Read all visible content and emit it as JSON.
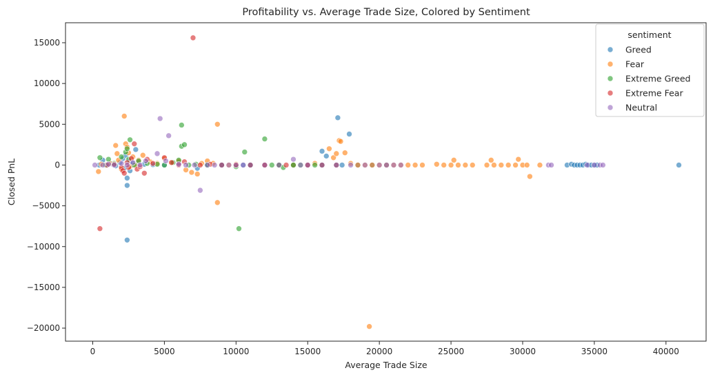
{
  "chart_data": {
    "type": "scatter",
    "title": "Profitability vs. Average Trade Size, Colored by Sentiment",
    "xlabel": "Average Trade Size",
    "ylabel": "Closed PnL",
    "xlim": [
      -1900,
      42800
    ],
    "ylim": [
      -21600,
      17450
    ],
    "xticks": [
      0,
      5000,
      10000,
      15000,
      20000,
      25000,
      30000,
      35000,
      40000
    ],
    "yticks": [
      -20000,
      -15000,
      -10000,
      -5000,
      0,
      5000,
      10000,
      15000
    ],
    "grid": false,
    "legend": {
      "title": "sentiment",
      "placement": "top-right"
    },
    "series": [
      {
        "name": "Greed",
        "color": "#1f77b4",
        "points": [
          [
            450,
            0
          ],
          [
            700,
            600
          ],
          [
            1000,
            0
          ],
          [
            1300,
            150
          ],
          [
            1600,
            -100
          ],
          [
            1900,
            300
          ],
          [
            2100,
            800
          ],
          [
            2200,
            -400
          ],
          [
            2300,
            1200
          ],
          [
            2400,
            -1600
          ],
          [
            2400,
            -2500
          ],
          [
            2400,
            -9200
          ],
          [
            2500,
            500
          ],
          [
            2600,
            -700
          ],
          [
            2700,
            0
          ],
          [
            2800,
            200
          ],
          [
            3000,
            1900
          ],
          [
            3200,
            300
          ],
          [
            3600,
            100
          ],
          [
            4200,
            50
          ],
          [
            5000,
            0
          ],
          [
            6000,
            300
          ],
          [
            7300,
            -400
          ],
          [
            8000,
            100
          ],
          [
            9000,
            0
          ],
          [
            10500,
            0
          ],
          [
            11000,
            0
          ],
          [
            12000,
            0
          ],
          [
            13000,
            0
          ],
          [
            14000,
            0
          ],
          [
            15000,
            0
          ],
          [
            16000,
            1700
          ],
          [
            16300,
            1100
          ],
          [
            17100,
            5800
          ],
          [
            17400,
            0
          ],
          [
            17900,
            3800
          ],
          [
            18500,
            0
          ],
          [
            19500,
            0
          ],
          [
            20500,
            0
          ],
          [
            33100,
            0
          ],
          [
            33400,
            100
          ],
          [
            33600,
            0
          ],
          [
            33800,
            0
          ],
          [
            34000,
            0
          ],
          [
            34200,
            0
          ],
          [
            34400,
            100
          ],
          [
            34600,
            0
          ],
          [
            34800,
            0
          ],
          [
            35000,
            0
          ],
          [
            35100,
            0
          ],
          [
            35200,
            0
          ],
          [
            40900,
            0
          ]
        ]
      },
      {
        "name": "Fear",
        "color": "#ff7f0e",
        "points": [
          [
            400,
            -800
          ],
          [
            600,
            100
          ],
          [
            1200,
            200
          ],
          [
            1600,
            2400
          ],
          [
            1700,
            1400
          ],
          [
            1800,
            600
          ],
          [
            2000,
            -500
          ],
          [
            2200,
            6000
          ],
          [
            2300,
            2600
          ],
          [
            2400,
            2200
          ],
          [
            2500,
            1500
          ],
          [
            2600,
            -200
          ],
          [
            2800,
            1000
          ],
          [
            3000,
            0
          ],
          [
            3200,
            600
          ],
          [
            3500,
            1200
          ],
          [
            4000,
            400
          ],
          [
            4500,
            200
          ],
          [
            5000,
            800
          ],
          [
            5500,
            300
          ],
          [
            6000,
            500
          ],
          [
            6500,
            -600
          ],
          [
            6900,
            -900
          ],
          [
            7300,
            -1100
          ],
          [
            7600,
            200
          ],
          [
            8000,
            500
          ],
          [
            8400,
            200
          ],
          [
            8700,
            5000
          ],
          [
            8700,
            -4600
          ],
          [
            9000,
            0
          ],
          [
            9500,
            0
          ],
          [
            10000,
            100
          ],
          [
            11000,
            0
          ],
          [
            12000,
            0
          ],
          [
            13000,
            0
          ],
          [
            14000,
            0
          ],
          [
            15000,
            0
          ],
          [
            15500,
            200
          ],
          [
            16000,
            0
          ],
          [
            16500,
            2000
          ],
          [
            16800,
            900
          ],
          [
            17000,
            1400
          ],
          [
            17200,
            3000
          ],
          [
            17300,
            2900
          ],
          [
            17600,
            1500
          ],
          [
            18000,
            200
          ],
          [
            18500,
            0
          ],
          [
            19000,
            0
          ],
          [
            19300,
            -19800
          ],
          [
            19500,
            0
          ],
          [
            20000,
            0
          ],
          [
            20500,
            0
          ],
          [
            21000,
            0
          ],
          [
            21500,
            0
          ],
          [
            22000,
            0
          ],
          [
            22500,
            0
          ],
          [
            23000,
            0
          ],
          [
            24000,
            100
          ],
          [
            24500,
            0
          ],
          [
            25000,
            0
          ],
          [
            25200,
            600
          ],
          [
            25500,
            0
          ],
          [
            26000,
            0
          ],
          [
            26500,
            0
          ],
          [
            27500,
            0
          ],
          [
            27800,
            600
          ],
          [
            28000,
            0
          ],
          [
            28500,
            0
          ],
          [
            29000,
            0
          ],
          [
            29500,
            0
          ],
          [
            29700,
            700
          ],
          [
            30000,
            0
          ],
          [
            30300,
            0
          ],
          [
            30500,
            -1400
          ],
          [
            31200,
            0
          ]
        ]
      },
      {
        "name": "Extreme Greed",
        "color": "#2ca02c",
        "points": [
          [
            500,
            900
          ],
          [
            900,
            0
          ],
          [
            1100,
            700
          ],
          [
            1500,
            200
          ],
          [
            2000,
            1000
          ],
          [
            2300,
            1600
          ],
          [
            2400,
            2000
          ],
          [
            2500,
            700
          ],
          [
            2600,
            3100
          ],
          [
            2900,
            0
          ],
          [
            3200,
            500
          ],
          [
            3800,
            200
          ],
          [
            4500,
            100
          ],
          [
            5000,
            0
          ],
          [
            5600,
            300
          ],
          [
            6000,
            600
          ],
          [
            6200,
            2300
          ],
          [
            6200,
            4900
          ],
          [
            6400,
            2500
          ],
          [
            6700,
            0
          ],
          [
            7200,
            100
          ],
          [
            8000,
            0
          ],
          [
            9000,
            0
          ],
          [
            10000,
            -200
          ],
          [
            10200,
            -7800
          ],
          [
            10600,
            1600
          ],
          [
            11000,
            0
          ],
          [
            12000,
            3200
          ],
          [
            12500,
            0
          ],
          [
            13000,
            0
          ],
          [
            13300,
            -300
          ],
          [
            14000,
            0
          ],
          [
            14500,
            0
          ],
          [
            15500,
            0
          ],
          [
            16000,
            0
          ],
          [
            17000,
            0
          ]
        ]
      },
      {
        "name": "Extreme Fear",
        "color": "#d62728",
        "points": [
          [
            500,
            -7800
          ],
          [
            1000,
            0
          ],
          [
            1500,
            100
          ],
          [
            2000,
            -300
          ],
          [
            2100,
            -700
          ],
          [
            2200,
            -1000
          ],
          [
            2400,
            300
          ],
          [
            2500,
            -300
          ],
          [
            2700,
            800
          ],
          [
            2900,
            2600
          ],
          [
            3100,
            -500
          ],
          [
            3300,
            -200
          ],
          [
            3600,
            -1000
          ],
          [
            3800,
            700
          ],
          [
            4200,
            200
          ],
          [
            5000,
            900
          ],
          [
            5500,
            300
          ],
          [
            6000,
            0
          ],
          [
            6400,
            400
          ],
          [
            7000,
            15600
          ],
          [
            7500,
            0
          ],
          [
            8200,
            100
          ],
          [
            9000,
            0
          ],
          [
            10000,
            0
          ],
          [
            11000,
            0
          ],
          [
            12000,
            0
          ],
          [
            13500,
            0
          ],
          [
            15000,
            0
          ],
          [
            16000,
            0
          ],
          [
            17000,
            0
          ]
        ]
      },
      {
        "name": "Neutral",
        "color": "#9467bd",
        "points": [
          [
            150,
            0
          ],
          [
            700,
            0
          ],
          [
            1100,
            100
          ],
          [
            1500,
            0
          ],
          [
            2000,
            200
          ],
          [
            2400,
            0
          ],
          [
            2800,
            300
          ],
          [
            3300,
            0
          ],
          [
            3700,
            500
          ],
          [
            4500,
            1400
          ],
          [
            4700,
            5700
          ],
          [
            5100,
            500
          ],
          [
            5300,
            3600
          ],
          [
            6000,
            100
          ],
          [
            6500,
            0
          ],
          [
            7100,
            0
          ],
          [
            7500,
            -3100
          ],
          [
            8000,
            0
          ],
          [
            8500,
            0
          ],
          [
            9000,
            0
          ],
          [
            9500,
            0
          ],
          [
            10000,
            0
          ],
          [
            10500,
            0
          ],
          [
            11000,
            0
          ],
          [
            12000,
            0
          ],
          [
            13000,
            0
          ],
          [
            14000,
            700
          ],
          [
            14500,
            0
          ],
          [
            15000,
            0
          ],
          [
            16000,
            0
          ],
          [
            17000,
            0
          ],
          [
            18000,
            0
          ],
          [
            19000,
            0
          ],
          [
            20000,
            0
          ],
          [
            20500,
            0
          ],
          [
            21000,
            0
          ],
          [
            21500,
            0
          ],
          [
            31800,
            0
          ],
          [
            32000,
            0
          ],
          [
            34500,
            0
          ],
          [
            35000,
            0
          ],
          [
            35400,
            0
          ],
          [
            35600,
            0
          ]
        ]
      }
    ]
  }
}
